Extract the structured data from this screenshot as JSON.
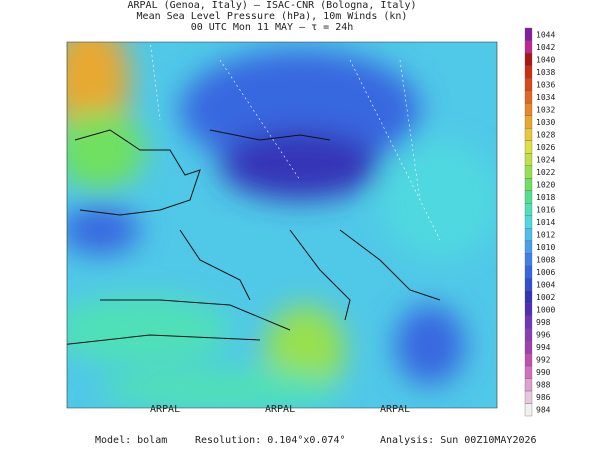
{
  "header": {
    "line1": "ARPAL (Genoa, Italy)  —  ISAC-CNR (Bologna, Italy)",
    "line2": "Mean Sea Level Pressure (hPa), 10m Winds (kn)",
    "line3": "00 UTC Mon 11 MAY  —  τ = 24h"
  },
  "watermark": "ARPAL",
  "colorbar": {
    "levels": [
      984,
      986,
      988,
      990,
      992,
      994,
      996,
      998,
      1000,
      1002,
      1004,
      1006,
      1008,
      1010,
      1012,
      1014,
      1016,
      1018,
      1020,
      1022,
      1024,
      1026,
      1028,
      1030,
      1032,
      1034,
      1036,
      1038,
      1040,
      1042,
      1044
    ],
    "colors": [
      "#f0f0f0",
      "#e8c8e0",
      "#e0a0d0",
      "#d070c0",
      "#c050b0",
      "#a040b0",
      "#8c3cb4",
      "#7038b4",
      "#5030b0",
      "#3434b8",
      "#3050d0",
      "#3868e0",
      "#4080e8",
      "#48a0e8",
      "#50c0e8",
      "#50d8e0",
      "#50e0b8",
      "#50e090",
      "#70e060",
      "#98e050",
      "#c0e048",
      "#e0e040",
      "#e8c838",
      "#e8a830",
      "#e88828",
      "#e06820",
      "#d84818",
      "#c83010",
      "#a81818",
      "#c02890",
      "#8020a0"
    ]
  },
  "footer": {
    "model": "Model: bolam",
    "resolution": "Resolution: 0.104°x0.074°",
    "analysis": "Analysis: Sun 00Z10MAY2026"
  }
}
